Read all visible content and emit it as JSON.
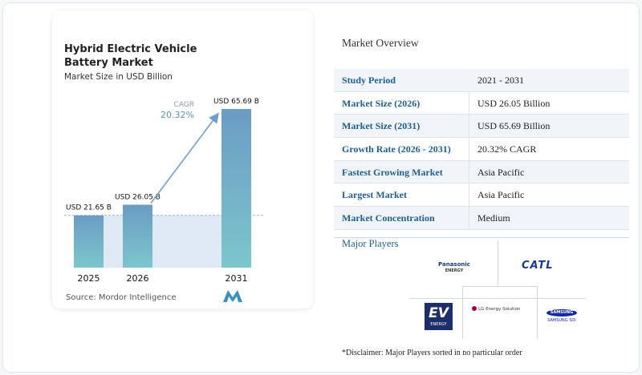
{
  "left_card": {
    "title": "Hybrid Electric Vehicle Battery Market",
    "subtitle": "Market Size in USD Billion",
    "source": "Source: Mordor Intelligence"
  },
  "chart_data": {
    "type": "bar",
    "categories": [
      "2025",
      "2026",
      "2031"
    ],
    "values": [
      21.65,
      26.05,
      65.69
    ],
    "data_labels": [
      "USD 21.65 B",
      "USD 26.05 B",
      "USD 65.69 B"
    ],
    "annotation": {
      "label": "CAGR",
      "value": "20.32%"
    },
    "ylim": [
      0,
      72
    ],
    "grid": false,
    "colors": {
      "bar_top": "#6b9cc4",
      "bar_bottom": "#7cc6cc",
      "arrow": "#6f9fc8",
      "label": "#111111",
      "cagr_value": "#5b8fc2",
      "cagr_label": "#8a9aa8",
      "band": "#dfe9f3"
    }
  },
  "overview": {
    "title": "Market Overview",
    "rows": [
      {
        "label": "Study Period",
        "value": "2021 - 2031"
      },
      {
        "label": "Market Size (2026)",
        "value": "USD 26.05 Billion"
      },
      {
        "label": "Market Size (2031)",
        "value": "USD 65.69 Billion"
      },
      {
        "label": "Growth Rate (2026 - 2031)",
        "value": "20.32% CAGR"
      },
      {
        "label": "Fastest Growing Market",
        "value": "Asia Pacific"
      },
      {
        "label": "Largest Market",
        "value": "Asia Pacific"
      },
      {
        "label": "Market Concentration",
        "value": "Medium"
      }
    ]
  },
  "players": {
    "title": "Major Players",
    "panasonic": {
      "name": "Panasonic",
      "sub": "ENERGY"
    },
    "catl": "CATL",
    "ev": {
      "name": "EV",
      "sub": "ENERGY"
    },
    "lg": "LG Energy Solution",
    "samsung": {
      "name": "SAMSUNG",
      "sub": "SAMSUNG SDI"
    },
    "disclaimer": "*Disclaimer: Major Players sorted in no particular order"
  }
}
